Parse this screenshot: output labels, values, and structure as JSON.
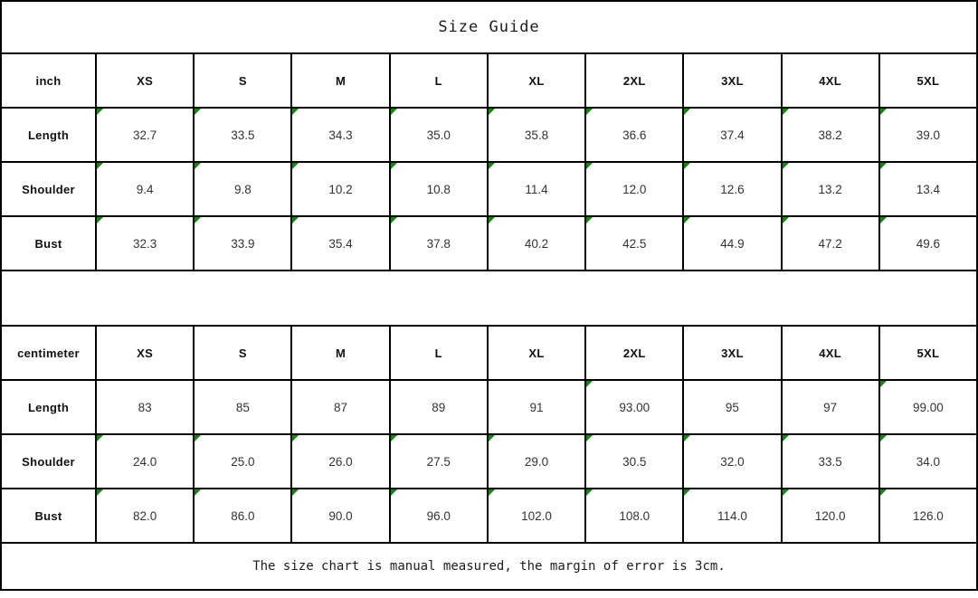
{
  "title": "Size Guide",
  "footer_note": "The size chart is manual measured, the margin of error is 3cm.",
  "sizes": [
    "XS",
    "S",
    "M",
    "L",
    "XL",
    "2XL",
    "3XL",
    "4XL",
    "5XL"
  ],
  "colors": {
    "grid_border": "#000000",
    "flag_green": "#0f8a0f",
    "background": "#ffffff",
    "text": "#1c1c1c"
  },
  "icons": {
    "flag_triangle": "green-corner-flag"
  },
  "tables": [
    {
      "unit": "inch",
      "rows": [
        {
          "label": "Length",
          "values": [
            "32.7",
            "33.5",
            "34.3",
            "35.0",
            "35.8",
            "36.6",
            "37.4",
            "38.2",
            "39.0"
          ],
          "flags": [
            true,
            true,
            true,
            true,
            true,
            true,
            true,
            true,
            true
          ]
        },
        {
          "label": "Shoulder",
          "values": [
            "9.4",
            "9.8",
            "10.2",
            "10.8",
            "11.4",
            "12.0",
            "12.6",
            "13.2",
            "13.4"
          ],
          "flags": [
            true,
            true,
            true,
            true,
            true,
            true,
            true,
            true,
            true
          ]
        },
        {
          "label": "Bust",
          "values": [
            "32.3",
            "33.9",
            "35.4",
            "37.8",
            "40.2",
            "42.5",
            "44.9",
            "47.2",
            "49.6"
          ],
          "flags": [
            true,
            true,
            true,
            true,
            true,
            true,
            true,
            true,
            true
          ]
        }
      ]
    },
    {
      "unit": "centimeter",
      "rows": [
        {
          "label": "Length",
          "values": [
            "83",
            "85",
            "87",
            "89",
            "91",
            "93.00",
            "95",
            "97",
            "99.00"
          ],
          "flags": [
            false,
            false,
            false,
            false,
            false,
            true,
            false,
            false,
            true
          ]
        },
        {
          "label": "Shoulder",
          "values": [
            "24.0",
            "25.0",
            "26.0",
            "27.5",
            "29.0",
            "30.5",
            "32.0",
            "33.5",
            "34.0"
          ],
          "flags": [
            true,
            true,
            true,
            true,
            true,
            true,
            true,
            true,
            true
          ]
        },
        {
          "label": "Bust",
          "values": [
            "82.0",
            "86.0",
            "90.0",
            "96.0",
            "102.0",
            "108.0",
            "114.0",
            "120.0",
            "126.0"
          ],
          "flags": [
            true,
            true,
            true,
            true,
            true,
            true,
            true,
            true,
            true
          ]
        }
      ]
    }
  ],
  "chart_data": [
    {
      "type": "table",
      "title": "Size Guide",
      "unit": "inch",
      "columns": [
        "inch",
        "XS",
        "S",
        "M",
        "L",
        "XL",
        "2XL",
        "3XL",
        "4XL",
        "5XL"
      ],
      "rows": [
        [
          "Length",
          "32.7",
          "33.5",
          "34.3",
          "35.0",
          "35.8",
          "36.6",
          "37.4",
          "38.2",
          "39.0"
        ],
        [
          "Shoulder",
          "9.4",
          "9.8",
          "10.2",
          "10.8",
          "11.4",
          "12.0",
          "12.6",
          "13.2",
          "13.4"
        ],
        [
          "Bust",
          "32.3",
          "33.9",
          "35.4",
          "37.8",
          "40.2",
          "42.5",
          "44.9",
          "47.2",
          "49.6"
        ]
      ]
    },
    {
      "type": "table",
      "title": "Size Guide",
      "unit": "centimeter",
      "columns": [
        "centimeter",
        "XS",
        "S",
        "M",
        "L",
        "XL",
        "2XL",
        "3XL",
        "4XL",
        "5XL"
      ],
      "rows": [
        [
          "Length",
          "83",
          "85",
          "87",
          "89",
          "91",
          "93.00",
          "95",
          "97",
          "99.00"
        ],
        [
          "Shoulder",
          "24.0",
          "25.0",
          "26.0",
          "27.5",
          "29.0",
          "30.5",
          "32.0",
          "33.5",
          "34.0"
        ],
        [
          "Bust",
          "82.0",
          "86.0",
          "90.0",
          "96.0",
          "102.0",
          "108.0",
          "114.0",
          "120.0",
          "126.0"
        ]
      ],
      "note": "The size chart is manual measured, the margin of error is 3cm."
    }
  ]
}
